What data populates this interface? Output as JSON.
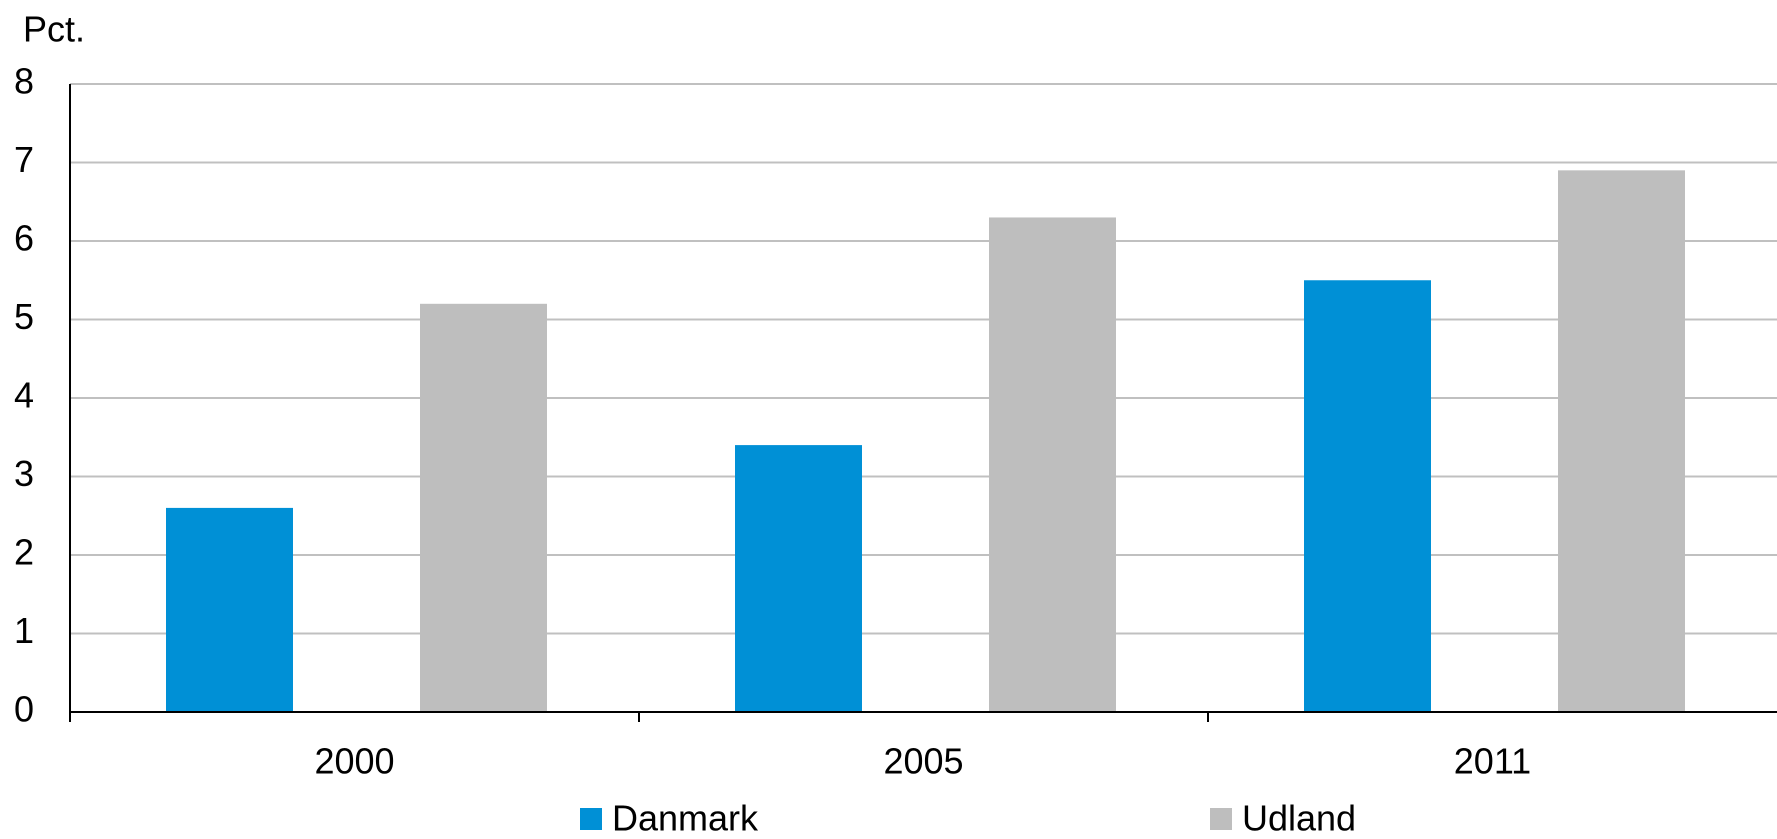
{
  "chart_data": {
    "type": "bar",
    "y_label": "Pct.",
    "categories": [
      "2000",
      "2005",
      "2011"
    ],
    "series": [
      {
        "name": "Danmark",
        "color": "#0090d6",
        "values": [
          2.6,
          3.4,
          5.5
        ]
      },
      {
        "name": "Udland",
        "color": "#bebebe",
        "values": [
          5.2,
          6.3,
          6.9
        ]
      }
    ],
    "ylim": [
      0,
      8
    ],
    "yticks": [
      0,
      1,
      2,
      3,
      4,
      5,
      6,
      7,
      8
    ],
    "grid": true,
    "legend": "bottom"
  }
}
